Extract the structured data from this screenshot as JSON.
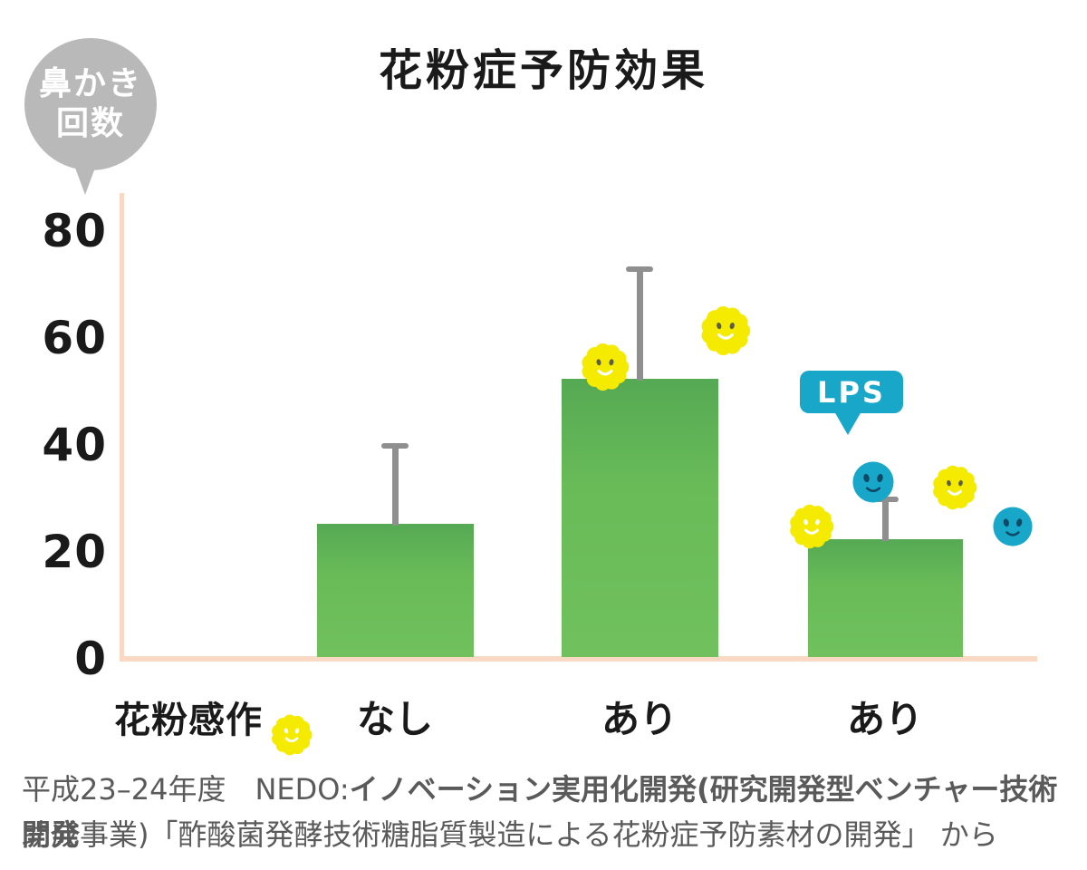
{
  "title": "花粉症予防効果",
  "y_axis_bubble": {
    "line1": "鼻かき",
    "line2": "回数"
  },
  "x_axis_legend": "花粉感作",
  "x_labels": [
    "なし",
    "あり",
    "あり"
  ],
  "lps_label": "LPS",
  "source": {
    "line1_regular": "平成23–24年度　NEDO:",
    "line1_bold": "イノベーション実用化開発(研究開発型ベンチャー技術開発",
    "line2_bold": "助成事業)「酢酸菌発酵技術糖脂質製造による花粉症予防素材の開発」 から"
  },
  "icons": {
    "pollen": "pollen-flower-smiley",
    "lps": "lps-blue-smiley"
  },
  "colors": {
    "bar_green_top": "#55a953",
    "bar_green_main": "#69bb58",
    "bar_green_low": "#70c15e",
    "axis_peach": "#f9d9c3",
    "error_gray": "#8f8f8f",
    "bubble_gray": "#b9b9b9",
    "teal": "#18a7c9",
    "pollen_yellow": "#f5eb00",
    "flower_eye_dark": "#5c5e46",
    "smiley_navy": "#0e4a66",
    "text_dark": "#1a1a1a",
    "source_gray": "#5a5a5a"
  },
  "chart_data": {
    "type": "bar",
    "title": "花粉症予防効果",
    "ylabel": "鼻かき回数",
    "xlabel": "花粉感作",
    "categories": [
      "花粉感作 なし",
      "花粉感作 あり",
      "花粉感作 あり + LPS"
    ],
    "values": [
      25,
      52,
      22
    ],
    "error_upper": [
      40,
      73,
      30
    ],
    "yticks": [
      80,
      60,
      40,
      20,
      0
    ],
    "ylim": [
      0,
      80
    ],
    "grid": false,
    "legend": "none",
    "annotations": [
      "LPS callout with arrow pointing to blue smiley near third bar",
      "yellow pollen smileys near bars 2 and 3"
    ]
  }
}
